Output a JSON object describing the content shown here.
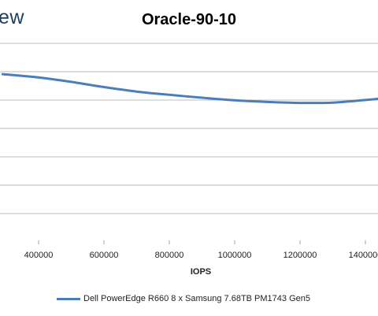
{
  "logo": {
    "text": "ew"
  },
  "chart_data": {
    "type": "line",
    "title": "Oracle-90-10",
    "xlabel": "IOPS",
    "ylabel": "",
    "xlim": [
      400000,
      1400000
    ],
    "x_ticks": [
      400000,
      600000,
      800000,
      1000000,
      1200000,
      1400000
    ],
    "x_tick_labels": [
      "400000",
      "600000",
      "800000",
      "1000000",
      "1200000",
      "1400000"
    ],
    "grid": true,
    "legend_position": "bottom",
    "colors": {
      "series": "#4a7ebb",
      "grid": "#a6a6a6"
    },
    "series": [
      {
        "name": "Dell PowerEdge R660 8 x Samsung 7.68TB PM1743 Gen5",
        "x": [
          290000,
          400000,
          500000,
          600000,
          700000,
          800000,
          900000,
          1000000,
          1100000,
          1200000,
          1300000,
          1400000,
          1440000
        ],
        "y_rel": [
          0.9,
          0.8,
          0.66,
          0.5,
          0.36,
          0.26,
          0.17,
          0.09,
          0.04,
          0.01,
          0.02,
          0.1,
          0.14
        ]
      }
    ]
  }
}
